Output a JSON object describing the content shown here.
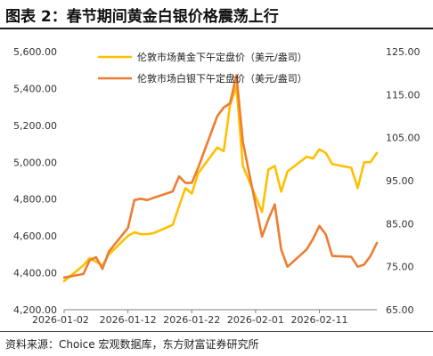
{
  "header": {
    "title": "图表 2：春节期间黄金白银价格震荡上行"
  },
  "footer": {
    "source": "资料来源：Choice 宏观数据库，东方财富证券研究所"
  },
  "colors": {
    "gold": "#FFC000",
    "silver": "#ED7D31",
    "axis": "#7f7f7f"
  },
  "chart_data": {
    "type": "line",
    "title": "",
    "legend_position": "top-center",
    "grid": false,
    "x_tick_labels": [
      "2026-01-02",
      "2026-01-12",
      "2026-01-22",
      "2026-02-01",
      "2026-02-11"
    ],
    "x_range": [
      "2026-01-02",
      "2026-02-20"
    ],
    "y_left": {
      "range": [
        4200,
        5600
      ],
      "tick_labels": [
        "4,200.00",
        "4,400.00",
        "4,600.00",
        "4,800.00",
        "5,000.00",
        "5,200.00",
        "5,400.00",
        "5,600.00"
      ]
    },
    "y_right": {
      "range": [
        65,
        125
      ],
      "tick_labels": [
        "65.00",
        "75.00",
        "85.00",
        "95.00",
        "105.00",
        "115.00",
        "125.00"
      ]
    },
    "series": [
      {
        "name": "伦敦市场黄金下午定盘价（美元/盎司）",
        "axis": "left",
        "color": "#FFC000",
        "points": [
          [
            "2026-01-02",
            4355
          ],
          [
            "2026-01-05",
            4440
          ],
          [
            "2026-01-06",
            4480
          ],
          [
            "2026-01-07",
            4460
          ],
          [
            "2026-01-08",
            4440
          ],
          [
            "2026-01-09",
            4500
          ],
          [
            "2026-01-12",
            4600
          ],
          [
            "2026-01-13",
            4620
          ],
          [
            "2026-01-14",
            4610
          ],
          [
            "2026-01-15",
            4610
          ],
          [
            "2026-01-16",
            4615
          ],
          [
            "2026-01-19",
            4660
          ],
          [
            "2026-01-20",
            4760
          ],
          [
            "2026-01-21",
            4860
          ],
          [
            "2026-01-22",
            4830
          ],
          [
            "2026-01-23",
            4940
          ],
          [
            "2026-01-26",
            5080
          ],
          [
            "2026-01-27",
            5060
          ],
          [
            "2026-01-28",
            5310
          ],
          [
            "2026-01-29",
            5410
          ],
          [
            "2026-01-30",
            4980
          ],
          [
            "2026-02-02",
            4730
          ],
          [
            "2026-02-03",
            4960
          ],
          [
            "2026-02-04",
            4980
          ],
          [
            "2026-02-05",
            4840
          ],
          [
            "2026-02-06",
            4950
          ],
          [
            "2026-02-09",
            5030
          ],
          [
            "2026-02-10",
            5020
          ],
          [
            "2026-02-11",
            5070
          ],
          [
            "2026-02-12",
            5050
          ],
          [
            "2026-02-13",
            4990
          ],
          [
            "2026-02-16",
            4970
          ],
          [
            "2026-02-17",
            4860
          ],
          [
            "2026-02-18",
            5000
          ],
          [
            "2026-02-19",
            5000
          ],
          [
            "2026-02-20",
            5050
          ]
        ]
      },
      {
        "name": "伦敦市场白银下午定盘价（美元/盎司）",
        "axis": "right",
        "color": "#ED7D31",
        "points": [
          [
            "2026-01-02",
            72.5
          ],
          [
            "2026-01-05",
            73.3
          ],
          [
            "2026-01-06",
            76.5
          ],
          [
            "2026-01-07",
            77.2
          ],
          [
            "2026-01-08",
            74.5
          ],
          [
            "2026-01-09",
            78.5
          ],
          [
            "2026-01-12",
            84.0
          ],
          [
            "2026-01-13",
            90.5
          ],
          [
            "2026-01-14",
            90.8
          ],
          [
            "2026-01-15",
            90.5
          ],
          [
            "2026-01-16",
            91.0
          ],
          [
            "2026-01-19",
            92.5
          ],
          [
            "2026-01-20",
            96.0
          ],
          [
            "2026-01-21",
            94.5
          ],
          [
            "2026-01-22",
            94.5
          ],
          [
            "2026-01-23",
            98.0
          ],
          [
            "2026-01-26",
            110.0
          ],
          [
            "2026-01-27",
            112.0
          ],
          [
            "2026-01-28",
            113.0
          ],
          [
            "2026-01-29",
            119.5
          ],
          [
            "2026-01-30",
            104.0
          ],
          [
            "2026-02-02",
            82.0
          ],
          [
            "2026-02-03",
            86.0
          ],
          [
            "2026-02-04",
            89.5
          ],
          [
            "2026-02-05",
            79.0
          ],
          [
            "2026-02-06",
            75.0
          ],
          [
            "2026-02-09",
            79.0
          ],
          [
            "2026-02-10",
            81.5
          ],
          [
            "2026-02-11",
            84.5
          ],
          [
            "2026-02-12",
            82.5
          ],
          [
            "2026-02-13",
            77.5
          ],
          [
            "2026-02-16",
            77.3
          ],
          [
            "2026-02-17",
            75.0
          ],
          [
            "2026-02-18",
            75.5
          ],
          [
            "2026-02-19",
            77.5
          ],
          [
            "2026-02-20",
            80.5
          ]
        ]
      }
    ]
  }
}
